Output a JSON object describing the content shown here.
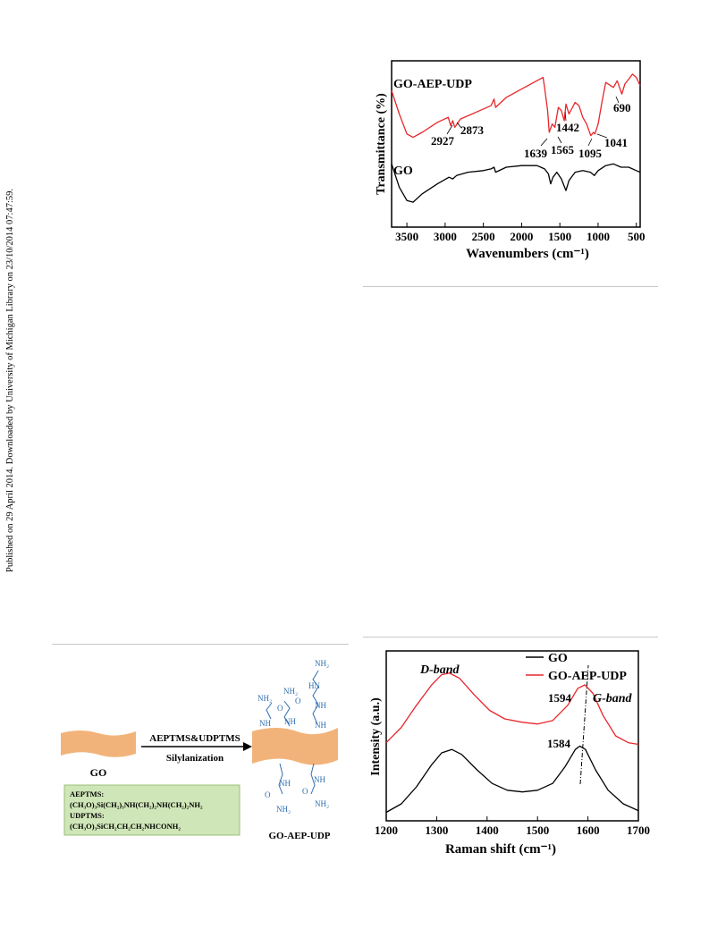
{
  "side_note": "Published on 29 April 2014. Downloaded by University of Michigan Library on 23/10/2014 07:47:59.",
  "colors": {
    "red": "#e8262b",
    "black": "#000000",
    "orange": "#f2b37a",
    "blue": "#2f6fb0",
    "green_box": "#cfe6b8"
  },
  "scheme": {
    "go_label": "GO",
    "arrow_top": "AEPTMS&UDPTMS",
    "arrow_bottom": "Silylanization",
    "product_label": "GO-AEP-UDP",
    "box_line1": "AEPTMS:",
    "box_line2": "(CH₃O)₃Si(CH₂)₃NH(CH₂)₂NH(CH₂)₂NH₂",
    "box_line3": "UDPTMS:",
    "box_line4": "(CH₃O)₃SiCH₂CH₂CH₂NHCONH₂",
    "groups": {
      "nh2": "NH₂",
      "nh": "NH",
      "hn": "HN",
      "o": "O"
    }
  },
  "chart_data": [
    {
      "type": "line",
      "title": "",
      "xlabel": "Wavenumbers (cm⁻¹)",
      "ylabel": "Transmittance (%)",
      "x_reversed": true,
      "xlim": [
        3700,
        450
      ],
      "x_ticks": [
        "3500",
        "3000",
        "2500",
        "2000",
        "1500",
        "1000",
        "500"
      ],
      "series": [
        {
          "name": "GO-AEP-UDP",
          "color": "#e8262b",
          "x": [
            3700,
            3600,
            3500,
            3420,
            3300,
            3100,
            2960,
            2927,
            2900,
            2873,
            2800,
            2600,
            2400,
            2360,
            2340,
            2200,
            2000,
            1800,
            1720,
            1700,
            1660,
            1639,
            1600,
            1565,
            1520,
            1480,
            1442,
            1420,
            1380,
            1300,
            1250,
            1200,
            1150,
            1095,
            1060,
            1041,
            1000,
            950,
            900,
            800,
            750,
            690,
            650,
            600,
            550,
            500,
            450
          ],
          "y": [
            0.82,
            0.68,
            0.56,
            0.54,
            0.57,
            0.63,
            0.66,
            0.61,
            0.64,
            0.6,
            0.65,
            0.69,
            0.73,
            0.77,
            0.72,
            0.78,
            0.83,
            0.88,
            0.9,
            0.84,
            0.7,
            0.57,
            0.62,
            0.6,
            0.72,
            0.7,
            0.64,
            0.74,
            0.68,
            0.75,
            0.73,
            0.66,
            0.62,
            0.55,
            0.57,
            0.56,
            0.62,
            0.75,
            0.87,
            0.84,
            0.88,
            0.8,
            0.86,
            0.89,
            0.92,
            0.9,
            0.85
          ]
        },
        {
          "name": "GO",
          "color": "#000000",
          "x": [
            3700,
            3600,
            3500,
            3420,
            3300,
            3100,
            2950,
            2900,
            2850,
            2700,
            2500,
            2400,
            2360,
            2340,
            2200,
            2000,
            1800,
            1750,
            1700,
            1650,
            1620,
            1590,
            1540,
            1480,
            1420,
            1380,
            1300,
            1200,
            1100,
            1050,
            1000,
            900,
            800,
            700,
            600,
            500,
            450
          ],
          "y": [
            0.38,
            0.24,
            0.16,
            0.15,
            0.2,
            0.26,
            0.3,
            0.29,
            0.31,
            0.33,
            0.34,
            0.35,
            0.36,
            0.33,
            0.36,
            0.37,
            0.37,
            0.36,
            0.35,
            0.32,
            0.26,
            0.3,
            0.33,
            0.29,
            0.22,
            0.28,
            0.33,
            0.34,
            0.33,
            0.31,
            0.34,
            0.37,
            0.38,
            0.36,
            0.36,
            0.34,
            0.33
          ]
        }
      ],
      "annotations": [
        "2927",
        "2873",
        "1442",
        "690",
        "1639",
        "1565",
        "1095",
        "1041"
      ]
    },
    {
      "type": "line",
      "title": "",
      "xlabel": "Raman shift (cm⁻¹)",
      "ylabel": "Intensity (a.u.)",
      "xlim": [
        1200,
        1700
      ],
      "x_ticks": [
        "1200",
        "1300",
        "1400",
        "1500",
        "1600",
        "1700"
      ],
      "legend_position": "top-right",
      "series": [
        {
          "name": "GO",
          "color": "#000000",
          "x": [
            1200,
            1230,
            1260,
            1290,
            1310,
            1330,
            1350,
            1380,
            1410,
            1440,
            1470,
            1500,
            1530,
            1555,
            1575,
            1584,
            1595,
            1615,
            1640,
            1670,
            1700
          ],
          "y": [
            0.05,
            0.1,
            0.2,
            0.33,
            0.4,
            0.42,
            0.39,
            0.3,
            0.22,
            0.18,
            0.17,
            0.18,
            0.22,
            0.32,
            0.42,
            0.44,
            0.42,
            0.3,
            0.18,
            0.1,
            0.06
          ]
        },
        {
          "name": "GO-AEP-UDP",
          "color": "#e8262b",
          "x": [
            1200,
            1230,
            1260,
            1290,
            1310,
            1325,
            1345,
            1375,
            1405,
            1435,
            1470,
            1500,
            1530,
            1560,
            1580,
            1594,
            1610,
            1630,
            1655,
            1680,
            1700
          ],
          "y": [
            0.46,
            0.55,
            0.68,
            0.8,
            0.86,
            0.87,
            0.84,
            0.74,
            0.65,
            0.6,
            0.58,
            0.57,
            0.59,
            0.68,
            0.78,
            0.8,
            0.75,
            0.62,
            0.5,
            0.46,
            0.45
          ]
        }
      ],
      "annotations": [
        "D-band",
        "G-band",
        "1594",
        "1584"
      ]
    }
  ]
}
